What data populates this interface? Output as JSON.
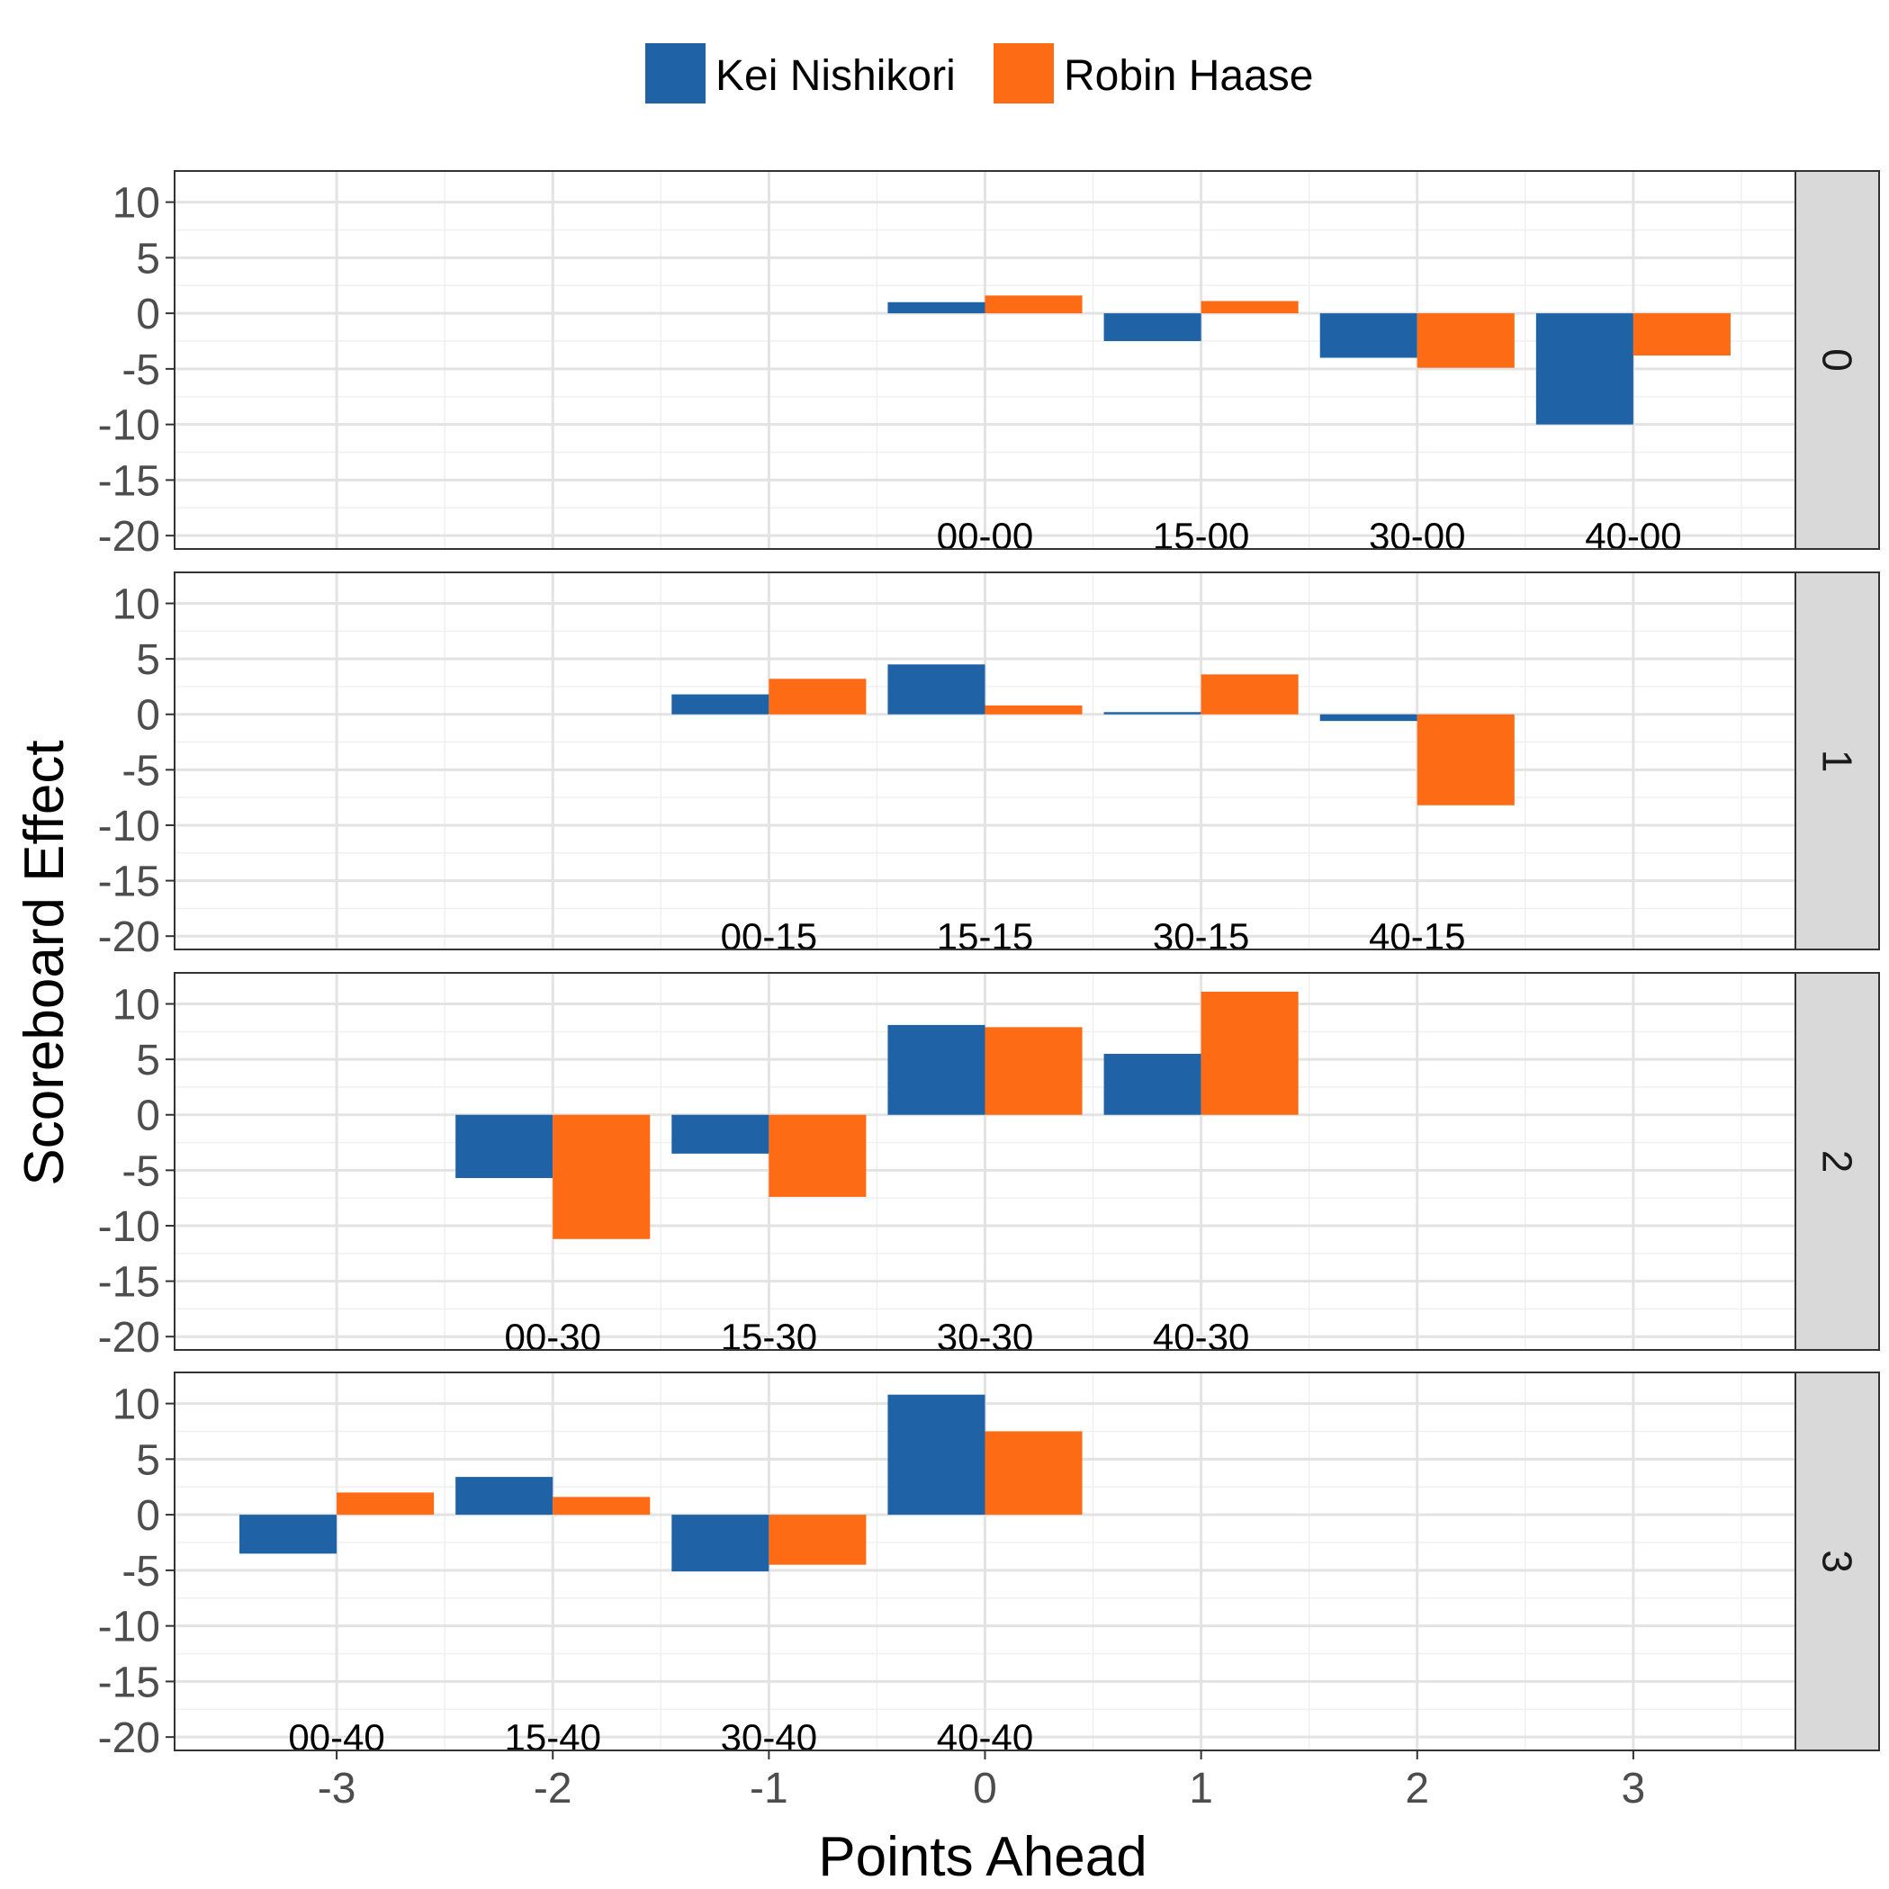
{
  "chart_data": {
    "type": "bar",
    "xlabel": "Points Ahead",
    "ylabel": "Scoreboard Effect",
    "x_ticks": [
      -3,
      -2,
      -1,
      0,
      1,
      2,
      3
    ],
    "xlim": [
      -3.75,
      3.75
    ],
    "ylim": [
      -21.2,
      12.8
    ],
    "y_ticks": [
      10,
      5,
      0,
      -5,
      -10,
      -15,
      -20
    ],
    "grid": true,
    "legend_position": "top",
    "colors": {
      "Kei Nishikori": "#1f63a6",
      "Robin Haase": "#fd6b14"
    },
    "series_names": [
      "Kei Nishikori",
      "Robin Haase"
    ],
    "facets": [
      {
        "strip": "0",
        "categories": [
          {
            "x": 0,
            "label": "00-00",
            "values": [
              1.0,
              1.6
            ]
          },
          {
            "x": 1,
            "label": "15-00",
            "values": [
              -2.5,
              1.1
            ]
          },
          {
            "x": 2,
            "label": "30-00",
            "values": [
              -4.0,
              -4.9
            ]
          },
          {
            "x": 3,
            "label": "40-00",
            "values": [
              -10.0,
              -3.8
            ]
          }
        ]
      },
      {
        "strip": "1",
        "categories": [
          {
            "x": -1,
            "label": "00-15",
            "values": [
              1.8,
              3.2
            ]
          },
          {
            "x": 0,
            "label": "15-15",
            "values": [
              4.5,
              0.8
            ]
          },
          {
            "x": 1,
            "label": "30-15",
            "values": [
              0.2,
              3.6
            ]
          },
          {
            "x": 2,
            "label": "40-15",
            "values": [
              -0.6,
              -8.2
            ]
          }
        ]
      },
      {
        "strip": "2",
        "categories": [
          {
            "x": -2,
            "label": "00-30",
            "values": [
              -5.7,
              -11.2
            ]
          },
          {
            "x": -1,
            "label": "15-30",
            "values": [
              -3.5,
              -7.4
            ]
          },
          {
            "x": 0,
            "label": "30-30",
            "values": [
              8.1,
              7.9
            ]
          },
          {
            "x": 1,
            "label": "40-30",
            "values": [
              5.5,
              11.1
            ]
          }
        ]
      },
      {
        "strip": "3",
        "categories": [
          {
            "x": -3,
            "label": "00-40",
            "values": [
              -3.5,
              2.0
            ]
          },
          {
            "x": -2,
            "label": "15-40",
            "values": [
              3.4,
              1.6
            ]
          },
          {
            "x": -1,
            "label": "30-40",
            "values": [
              -5.1,
              -4.5
            ]
          },
          {
            "x": 0,
            "label": "40-40",
            "values": [
              10.8,
              7.5
            ]
          }
        ]
      }
    ]
  }
}
